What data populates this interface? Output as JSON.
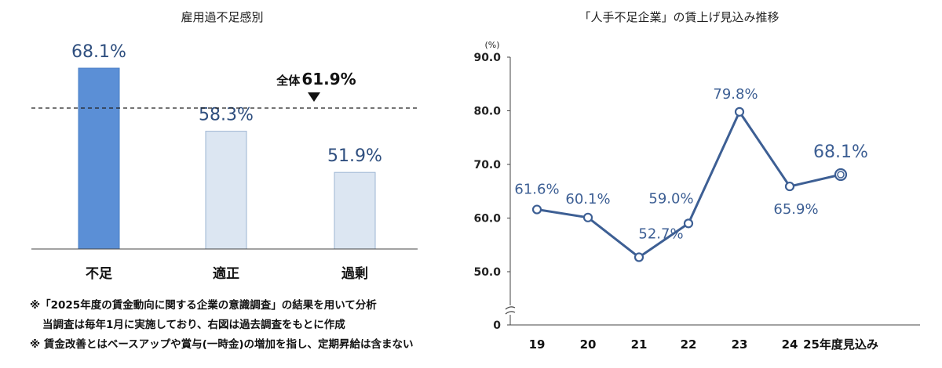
{
  "chart_data": [
    {
      "type": "bar",
      "title": "雇用過不足感別",
      "categories": [
        "不足",
        "適正",
        "過剰"
      ],
      "values": [
        68.1,
        58.3,
        51.9
      ],
      "value_labels": [
        "68.1%",
        "58.3%",
        "51.9%"
      ],
      "bar_colors": [
        "#5B8FD6",
        "#DCE6F2",
        "#DCE6F2"
      ],
      "bar_edge_colors": [
        "#4A7FC6",
        "#9DB5D3",
        "#9DB5D3"
      ],
      "label_color": "#2F4F7F",
      "reference_line": {
        "value": 61.9,
        "label": "全体",
        "value_label": "61.9%",
        "style": "dashed"
      },
      "ylim": [
        40,
        72
      ]
    },
    {
      "type": "line",
      "title": "「人手不足企業」の賃上げ見込み推移",
      "ylabel": "(%)",
      "x": [
        "19",
        "20",
        "21",
        "22",
        "23",
        "24",
        "25年度見込み"
      ],
      "values": [
        61.6,
        60.1,
        52.7,
        59.0,
        79.8,
        65.9,
        68.1
      ],
      "value_labels": [
        "61.6%",
        "60.1%",
        "52.7%",
        "59.0%",
        "79.8%",
        "65.9%",
        "68.1%"
      ],
      "yticks": [
        "90.0",
        "80.0",
        "70.0",
        "60.0",
        "50.0",
        "0"
      ],
      "ylim": [
        50,
        90
      ],
      "axis_break": true,
      "line_color": "#3D5F94",
      "label_color": "#3D5F94",
      "grid": false
    }
  ],
  "notes": [
    "※「2025年度の賃金動向に関する企業の意識調査」の結果を用いて分析",
    "当調査は毎年1月に実施しており、右図は過去調査をもとに作成",
    "※ 賃金改善とはベースアップや賞与(一時金)の増加を指し、定期昇給は含まない"
  ]
}
